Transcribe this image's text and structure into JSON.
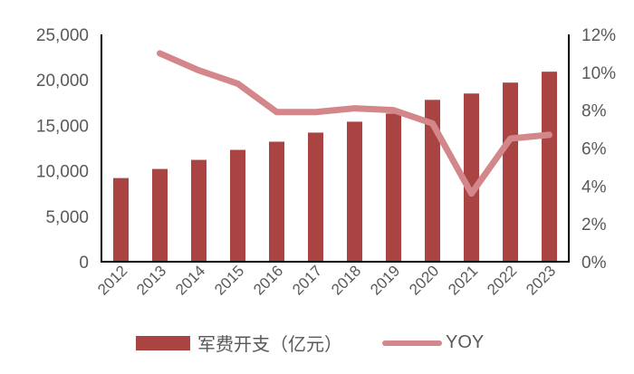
{
  "chart_data": {
    "type": "bar+line",
    "title": "",
    "categories": [
      "2012",
      "2013",
      "2014",
      "2015",
      "2016",
      "2017",
      "2018",
      "2019",
      "2020",
      "2021",
      "2022",
      "2023"
    ],
    "series": [
      {
        "name": "军费开支（亿元）",
        "type": "bar",
        "axis": "left",
        "color": "#a94442",
        "values": [
          9200,
          10200,
          11200,
          12300,
          13200,
          14200,
          15400,
          16300,
          17800,
          18500,
          19700,
          20900
        ]
      },
      {
        "name": "YOY",
        "type": "line",
        "axis": "right",
        "color": "#d4878a",
        "values": [
          null,
          11.0,
          10.1,
          9.4,
          7.9,
          7.9,
          8.1,
          8.0,
          7.3,
          3.6,
          6.5,
          6.7
        ]
      }
    ],
    "left_axis": {
      "ylim": [
        0,
        25000
      ],
      "ticks": [
        "0",
        "5,000",
        "10,000",
        "15,000",
        "20,000",
        "25,000"
      ]
    },
    "right_axis": {
      "ylim": [
        0,
        12
      ],
      "ticks": [
        "0%",
        "2%",
        "4%",
        "6%",
        "8%",
        "10%",
        "12%"
      ]
    },
    "xlabel": "",
    "ylabel": "",
    "grid": false,
    "legend_position": "bottom"
  },
  "legend": {
    "bar_label": "军费开支（亿元）",
    "line_label": "YOY"
  }
}
